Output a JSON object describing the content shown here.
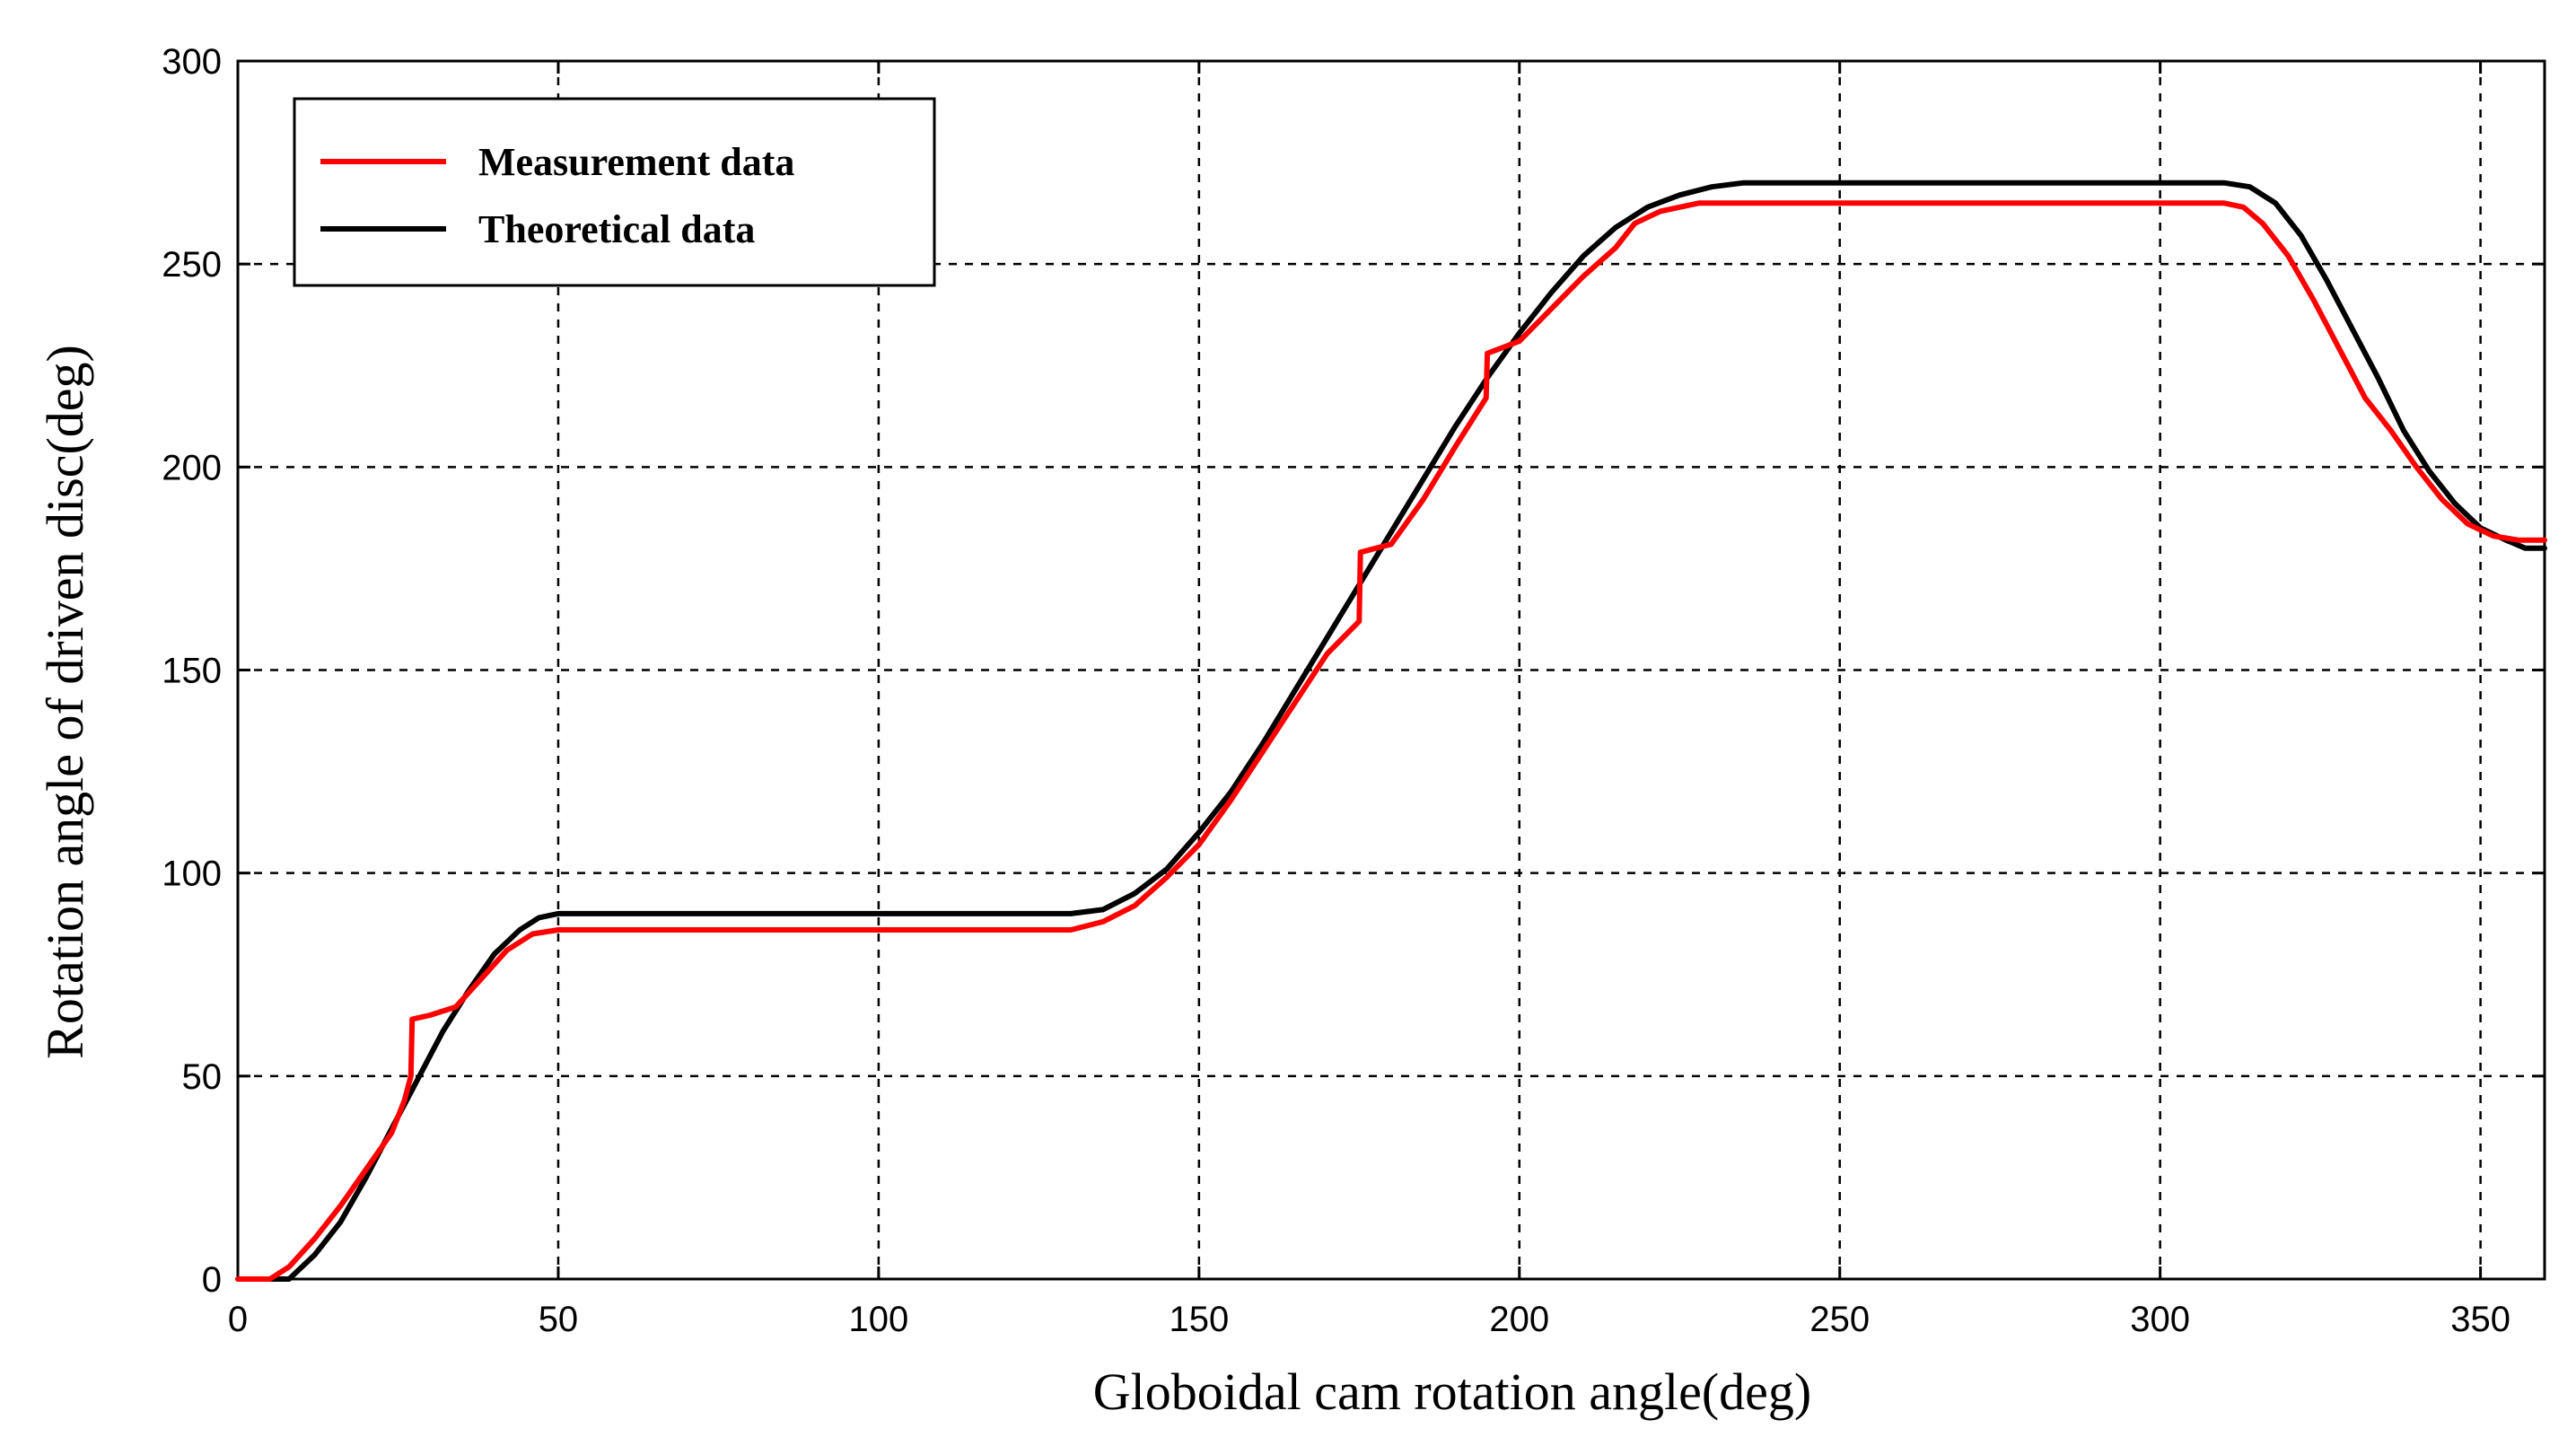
{
  "chart_data": {
    "type": "line",
    "title": "",
    "xlabel": "Globoidal cam rotation angle(deg)",
    "ylabel": "Rotation angle of driven disc(deg)",
    "xlim": [
      0,
      360
    ],
    "ylim": [
      0,
      300
    ],
    "xticks": [
      "0",
      "50",
      "100",
      "150",
      "200",
      "250",
      "300",
      "350"
    ],
    "yticks": [
      "0",
      "50",
      "100",
      "150",
      "200",
      "250",
      "300"
    ],
    "grid": true,
    "legend_position": "top-left",
    "series": [
      {
        "name": "Measurement data",
        "color": "#ff0000",
        "points": [
          [
            0,
            0
          ],
          [
            5,
            0
          ],
          [
            8,
            3
          ],
          [
            12,
            10
          ],
          [
            16,
            18
          ],
          [
            20,
            27
          ],
          [
            24,
            36
          ],
          [
            26,
            44
          ],
          [
            27,
            50
          ],
          [
            27.2,
            64
          ],
          [
            30,
            65
          ],
          [
            34,
            67
          ],
          [
            38,
            74
          ],
          [
            42,
            81
          ],
          [
            46,
            85
          ],
          [
            50,
            86
          ],
          [
            130,
            86
          ],
          [
            135,
            88
          ],
          [
            140,
            92
          ],
          [
            145,
            99
          ],
          [
            150,
            107
          ],
          [
            155,
            118
          ],
          [
            160,
            130
          ],
          [
            165,
            142
          ],
          [
            170,
            154
          ],
          [
            175,
            162
          ],
          [
            175.2,
            179
          ],
          [
            180,
            181
          ],
          [
            185,
            192
          ],
          [
            190,
            205
          ],
          [
            194.8,
            217
          ],
          [
            195,
            228
          ],
          [
            200,
            231
          ],
          [
            205,
            239
          ],
          [
            210,
            247
          ],
          [
            215,
            254
          ],
          [
            218,
            260
          ],
          [
            222,
            263
          ],
          [
            228,
            265
          ],
          [
            240,
            265
          ],
          [
            310,
            265
          ],
          [
            313,
            264
          ],
          [
            316,
            260
          ],
          [
            320,
            252
          ],
          [
            324,
            241
          ],
          [
            328,
            229
          ],
          [
            332,
            217
          ],
          [
            336,
            209
          ],
          [
            340,
            200
          ],
          [
            344,
            192
          ],
          [
            348,
            186
          ],
          [
            352,
            183
          ],
          [
            356,
            182
          ],
          [
            360,
            182
          ]
        ]
      },
      {
        "name": "Theoretical data",
        "color": "#000000",
        "points": [
          [
            0,
            0
          ],
          [
            8,
            0
          ],
          [
            12,
            6
          ],
          [
            16,
            14
          ],
          [
            20,
            25
          ],
          [
            24,
            37
          ],
          [
            28,
            49
          ],
          [
            32,
            61
          ],
          [
            36,
            71
          ],
          [
            40,
            80
          ],
          [
            44,
            86
          ],
          [
            47,
            89
          ],
          [
            50,
            90
          ],
          [
            130,
            90
          ],
          [
            135,
            91
          ],
          [
            140,
            95
          ],
          [
            145,
            101
          ],
          [
            150,
            110
          ],
          [
            155,
            120
          ],
          [
            160,
            132
          ],
          [
            165,
            145
          ],
          [
            170,
            158
          ],
          [
            175,
            171
          ],
          [
            180,
            184
          ],
          [
            185,
            197
          ],
          [
            190,
            210
          ],
          [
            195,
            222
          ],
          [
            200,
            233
          ],
          [
            205,
            243
          ],
          [
            210,
            252
          ],
          [
            215,
            259
          ],
          [
            220,
            264
          ],
          [
            225,
            267
          ],
          [
            230,
            269
          ],
          [
            235,
            270
          ],
          [
            310,
            270
          ],
          [
            314,
            269
          ],
          [
            318,
            265
          ],
          [
            322,
            257
          ],
          [
            326,
            246
          ],
          [
            330,
            234
          ],
          [
            334,
            222
          ],
          [
            338,
            209
          ],
          [
            342,
            199
          ],
          [
            346,
            191
          ],
          [
            350,
            185
          ],
          [
            354,
            182
          ],
          [
            357,
            180
          ],
          [
            360,
            180
          ]
        ]
      }
    ]
  }
}
